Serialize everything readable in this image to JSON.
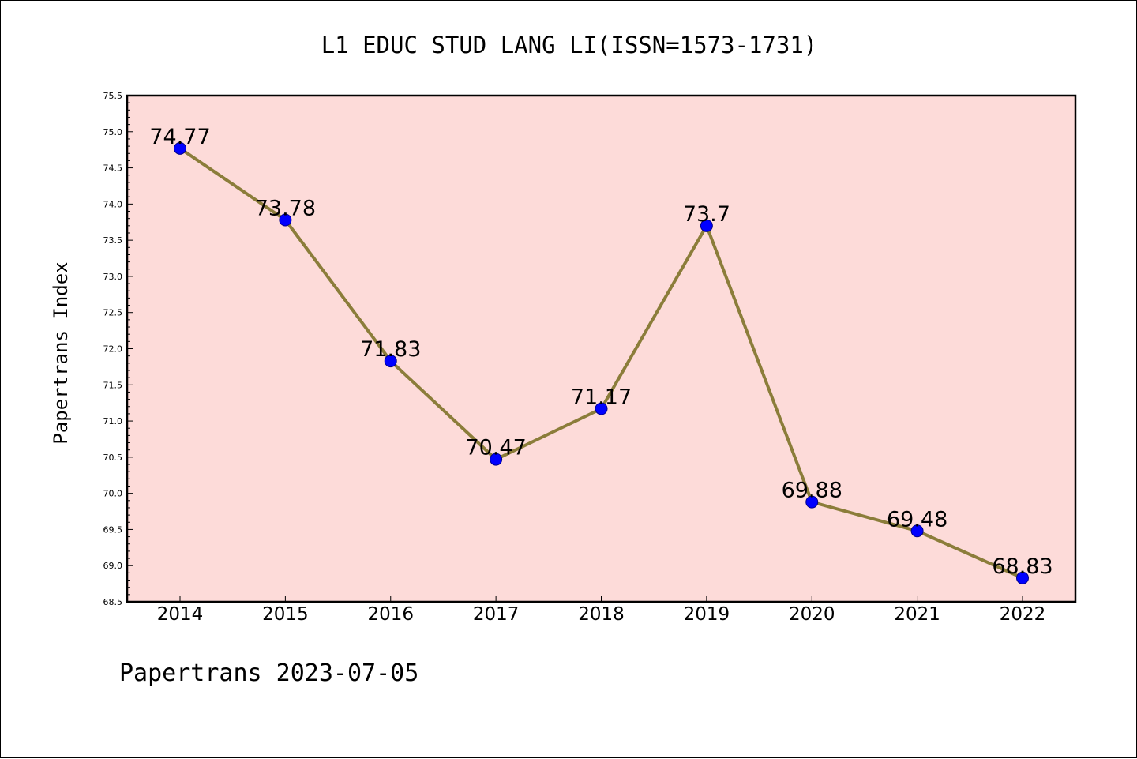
{
  "chart_data": {
    "type": "line",
    "title": "L1 EDUC STUD LANG LI(ISSN=1573-1731)",
    "ylabel": "Papertrans Index",
    "xlabel": "",
    "x": [
      "2014",
      "2015",
      "2016",
      "2017",
      "2018",
      "2019",
      "2020",
      "2021",
      "2022"
    ],
    "series": [
      {
        "values": [
          74.77,
          73.78,
          71.83,
          70.47,
          71.17,
          73.7,
          69.88,
          69.48,
          68.83
        ],
        "data_labels": [
          "74.77",
          "73.78",
          "71.83",
          "70.47",
          "71.17",
          "73.7",
          "69.88",
          "69.48",
          "68.83"
        ]
      }
    ],
    "ylim": [
      68.5,
      75.5
    ],
    "yticks": [
      "68.5",
      "69.0",
      "69.5",
      "70.0",
      "70.5",
      "71.0",
      "71.5",
      "72.0",
      "72.5",
      "73.0",
      "73.5",
      "74.0",
      "74.5",
      "75.0",
      "75.5"
    ],
    "grid": false,
    "legend": "none",
    "colors": {
      "plot_background": "#fddbd9",
      "line": "#8b7d3a",
      "marker": "#0000ff",
      "marker_edge": "#00008b"
    }
  },
  "footer": "Papertrans 2023-07-05"
}
